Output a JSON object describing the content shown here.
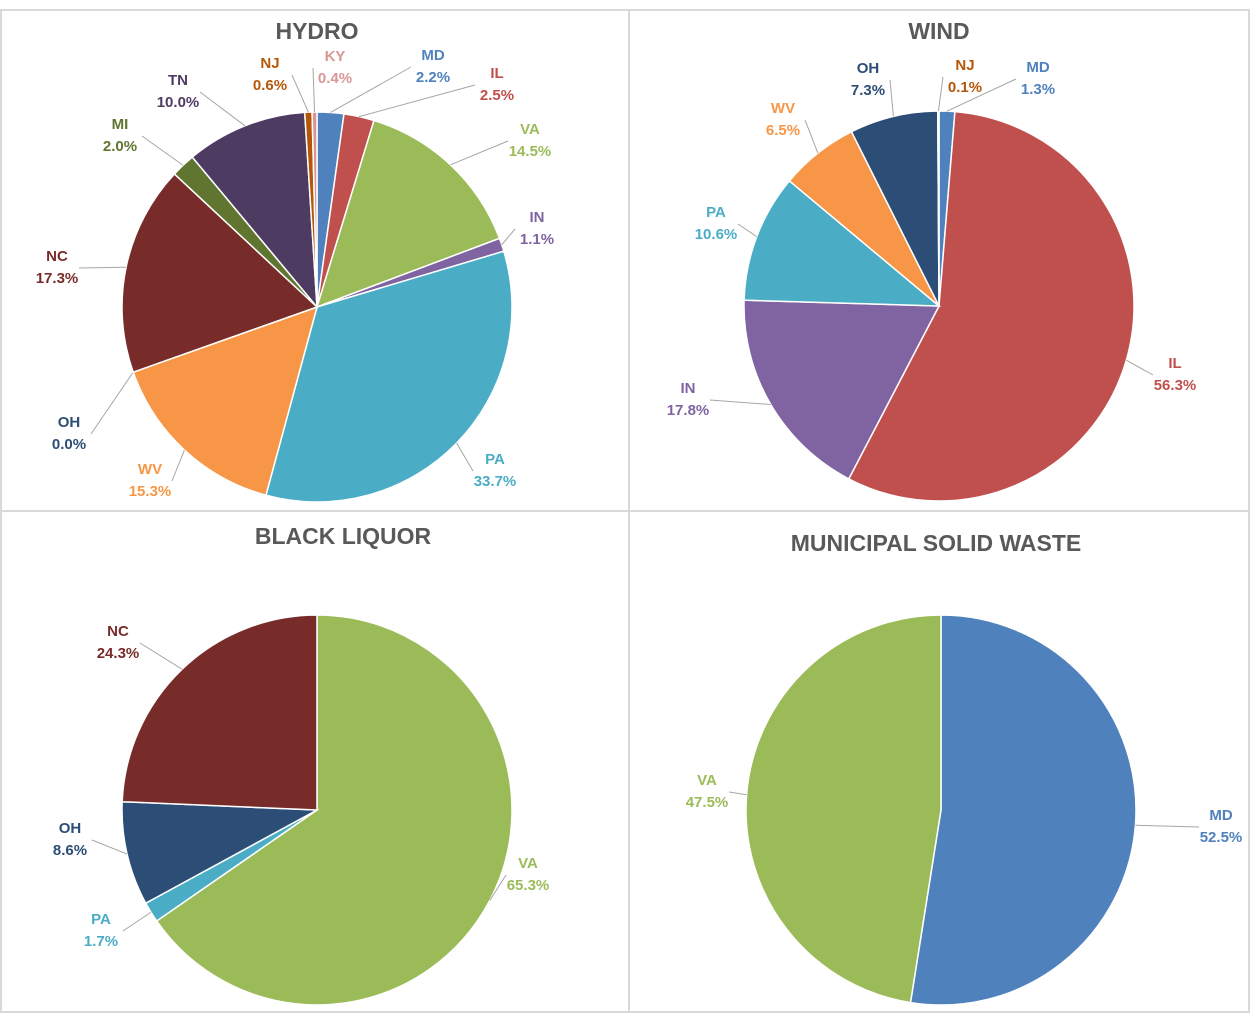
{
  "chart_data": [
    {
      "type": "pie",
      "title": "HYDRO",
      "categories": [
        "MD",
        "IL",
        "VA",
        "IN",
        "PA",
        "WV",
        "OH",
        "NC",
        "MI",
        "TN",
        "NJ",
        "KY"
      ],
      "values": [
        2.2,
        2.5,
        14.5,
        1.1,
        33.7,
        15.3,
        0.0,
        17.3,
        2.0,
        10.0,
        0.6,
        0.4
      ],
      "value_labels": [
        "2.2%",
        "2.5%",
        "14.5%",
        "1.1%",
        "33.7%",
        "15.3%",
        "0.0%",
        "17.3%",
        "2.0%",
        "10.0%",
        "0.6%",
        "0.4%"
      ],
      "colors": [
        "#4f81bd",
        "#c0504d",
        "#9bbb59",
        "#8064a2",
        "#4bacc6",
        "#f79646",
        "#2c4d75",
        "#772c2a",
        "#5f7530",
        "#4d3b62",
        "#b65708",
        "#d99694"
      ]
    },
    {
      "type": "pie",
      "title": "WIND",
      "categories": [
        "MD",
        "IL",
        "IN",
        "PA",
        "WV",
        "OH",
        "NJ"
      ],
      "values": [
        1.3,
        56.3,
        17.8,
        10.6,
        6.5,
        7.3,
        0.1
      ],
      "value_labels": [
        "1.3%",
        "56.3%",
        "17.8%",
        "10.6%",
        "6.5%",
        "7.3%",
        "0.1%"
      ],
      "colors": [
        "#4f81bd",
        "#c0504d",
        "#8064a2",
        "#4bacc6",
        "#f79646",
        "#2c4d75",
        "#b65708"
      ]
    },
    {
      "type": "pie",
      "title": "BLACK LIQUOR",
      "categories": [
        "VA",
        "PA",
        "OH",
        "NC"
      ],
      "values": [
        65.3,
        1.7,
        8.6,
        24.3
      ],
      "value_labels": [
        "65.3%",
        "1.7%",
        "8.6%",
        "24.3%"
      ],
      "colors": [
        "#9bbb59",
        "#4bacc6",
        "#2c4d75",
        "#772c2a"
      ]
    },
    {
      "type": "pie",
      "title": "MUNICIPAL SOLID WASTE",
      "categories": [
        "MD",
        "VA"
      ],
      "values": [
        52.5,
        47.5
      ],
      "value_labels": [
        "52.5%",
        "47.5%"
      ],
      "colors": [
        "#4f81bd",
        "#9bbb59"
      ]
    }
  ]
}
